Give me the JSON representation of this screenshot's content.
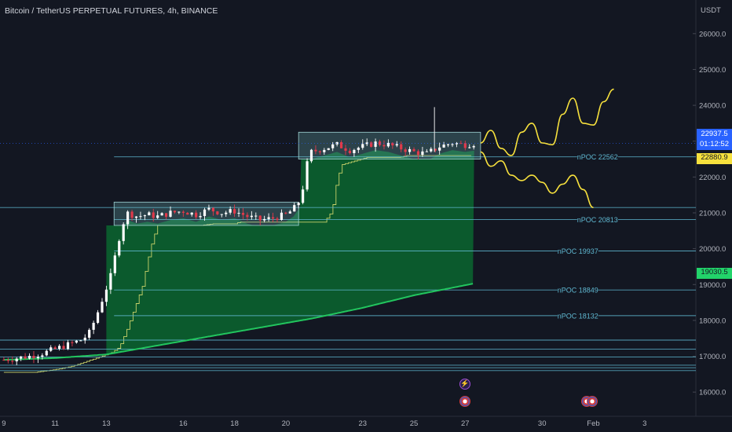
{
  "header": {
    "title": "Bitcoin / TetherUS PERPETUAL FUTURES, 4h, BINANCE",
    "currency": "USDT"
  },
  "price_tags": {
    "current": "22937.5",
    "countdown": "01:12:52",
    "yellow": "22880.9",
    "green": "19030.5"
  },
  "colors": {
    "background": "#131722",
    "up_candle": "#ffffff",
    "down_candle": "#e03a4b",
    "volume_fill": "#0b5e2e",
    "vwap_line": "#22c55e",
    "poc_line": "#c9d16a",
    "level_lines": "#5fb7d0",
    "projection": "#f7e13d",
    "box_fill": "rgba(120,200,200,0.25)"
  },
  "chart_data": {
    "type": "candlestick",
    "title": "Bitcoin / TetherUS PERPETUAL FUTURES, 4h, BINANCE",
    "timeframe": "4h",
    "ylabel": "USDT",
    "ylim": [
      15500,
      26500
    ],
    "y_ticks": [
      16000,
      17000,
      18000,
      19000,
      20000,
      21000,
      22000,
      23000,
      24000,
      25000,
      26000
    ],
    "y_tick_labels": [
      "16000.0",
      "17000.0",
      "18000.0",
      "19000.0",
      "20000.0",
      "21000.0",
      "22000.0",
      "23000.0",
      "24000.0",
      "25000.0",
      "26000.0"
    ],
    "x_tick_labels": [
      "9",
      "11",
      "13",
      "16",
      "18",
      "20",
      "23",
      "25",
      "27",
      "30",
      "Feb",
      "3"
    ],
    "x_ticks_day": [
      9,
      11,
      13,
      16,
      18,
      20,
      23,
      25,
      27,
      30,
      32,
      34
    ],
    "xlim_day": [
      8.85,
      36.0
    ],
    "last_candle_day": 27.35,
    "price_path": [
      [
        9.0,
        16900
      ],
      [
        9.5,
        16950
      ],
      [
        10.0,
        17000
      ],
      [
        10.5,
        17080
      ],
      [
        11.0,
        17200
      ],
      [
        11.5,
        17320
      ],
      [
        12.0,
        17450
      ],
      [
        12.3,
        17600
      ],
      [
        12.6,
        18100
      ],
      [
        12.8,
        18500
      ],
      [
        13.0,
        18900
      ],
      [
        13.2,
        19300
      ],
      [
        13.4,
        20000
      ],
      [
        13.6,
        20600
      ],
      [
        13.8,
        21000
      ],
      [
        14.2,
        20900
      ],
      [
        14.6,
        20950
      ],
      [
        15.0,
        20900
      ],
      [
        15.5,
        21000
      ],
      [
        16.0,
        21050
      ],
      [
        16.5,
        20950
      ],
      [
        17.0,
        21100
      ],
      [
        17.5,
        21000
      ],
      [
        18.0,
        21050
      ],
      [
        18.5,
        20900
      ],
      [
        19.0,
        20800
      ],
      [
        19.5,
        20850
      ],
      [
        20.0,
        20950
      ],
      [
        20.3,
        21100
      ],
      [
        20.6,
        21400
      ],
      [
        20.8,
        22300
      ],
      [
        21.0,
        22700
      ],
      [
        21.5,
        22800
      ],
      [
        22.0,
        22900
      ],
      [
        22.5,
        22750
      ],
      [
        23.0,
        22850
      ],
      [
        23.5,
        22950
      ],
      [
        24.0,
        22900
      ],
      [
        24.5,
        22800
      ],
      [
        25.0,
        22700
      ],
      [
        25.5,
        22650
      ],
      [
        26.0,
        22850
      ],
      [
        26.5,
        22950
      ],
      [
        27.0,
        22900
      ],
      [
        27.35,
        22937.5
      ]
    ],
    "volume_profile_area": {
      "start_day": 13.0,
      "end_day": 27.35
    },
    "vwap_band": [
      [
        9.0,
        16900
      ],
      [
        11.0,
        16950
      ],
      [
        13.0,
        17050
      ],
      [
        15.0,
        17300
      ],
      [
        17.0,
        17550
      ],
      [
        19.0,
        17800
      ],
      [
        21.0,
        18050
      ],
      [
        23.0,
        18350
      ],
      [
        25.0,
        18700
      ],
      [
        27.35,
        19030.5
      ]
    ],
    "consolidation_boxes": [
      {
        "day_from": 13.3,
        "day_to": 20.5,
        "low": 20650,
        "high": 21300
      },
      {
        "day_from": 20.5,
        "day_to": 27.6,
        "low": 22500,
        "high": 23250
      }
    ],
    "levels": [
      {
        "label": "nPOC 22562",
        "value": 22562
      },
      {
        "label": "",
        "value": 21150
      },
      {
        "label": "nPOC 20813",
        "value": 20813
      },
      {
        "label": "nPOC 19937",
        "value": 19937
      },
      {
        "label": "nPOC 18849",
        "value": 18849
      },
      {
        "label": "nPOC 18132",
        "value": 18132
      },
      {
        "label": "",
        "value": 17450
      },
      {
        "label": "",
        "value": 17200
      },
      {
        "label": "",
        "value": 16980
      },
      {
        "label": "",
        "value": 16750
      },
      {
        "label": "",
        "value": 16680
      },
      {
        "label": "",
        "value": 16600
      }
    ],
    "projections": [
      [
        [
          27.6,
          22950
        ],
        [
          28.0,
          23300
        ],
        [
          28.4,
          22800
        ],
        [
          28.8,
          22600
        ],
        [
          29.2,
          23250
        ],
        [
          29.6,
          23500
        ],
        [
          30.0,
          22950
        ],
        [
          30.4,
          22900
        ],
        [
          30.8,
          23750
        ],
        [
          31.2,
          24200
        ],
        [
          31.6,
          23500
        ],
        [
          32.0,
          23450
        ],
        [
          32.4,
          24100
        ],
        [
          32.8,
          24450
        ]
      ],
      [
        [
          27.6,
          22700
        ],
        [
          28.0,
          22300
        ],
        [
          28.4,
          22450
        ],
        [
          28.8,
          22050
        ],
        [
          29.2,
          21900
        ],
        [
          29.6,
          22050
        ],
        [
          30.0,
          21850
        ],
        [
          30.4,
          21550
        ],
        [
          30.8,
          21800
        ],
        [
          31.2,
          22050
        ],
        [
          31.6,
          21650
        ],
        [
          32.0,
          21150
        ]
      ]
    ]
  }
}
